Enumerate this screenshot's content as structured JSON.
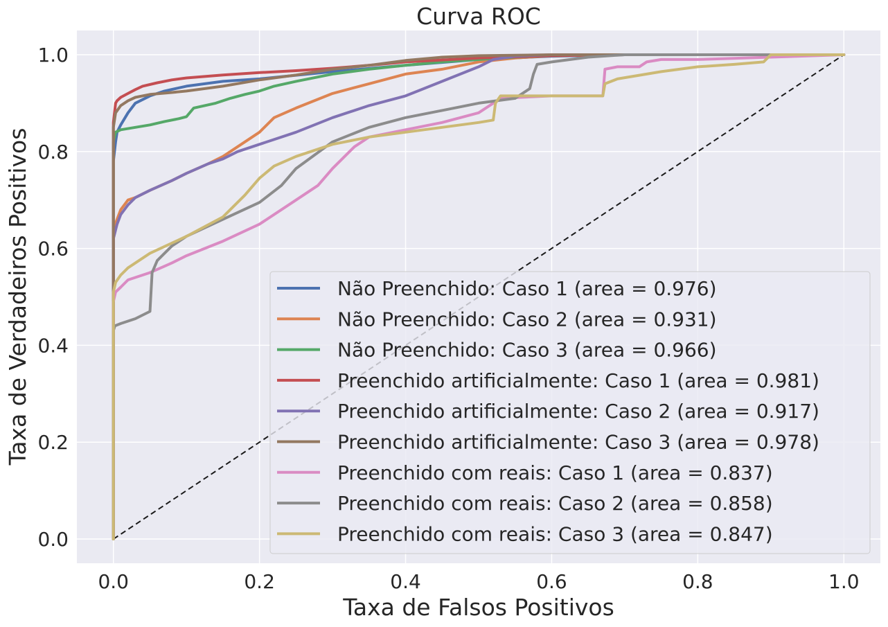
{
  "chart_data": {
    "type": "line",
    "title": "Curva ROC",
    "xlabel": "Taxa de Falsos Positivos",
    "ylabel": "Taxa de Verdadeiros Positivos",
    "xlim": [
      -0.05,
      1.05
    ],
    "ylim": [
      -0.05,
      1.05
    ],
    "xticks": [
      "0.0",
      "0.2",
      "0.4",
      "0.6",
      "0.8",
      "1.0"
    ],
    "yticks": [
      "0.0",
      "0.2",
      "0.4",
      "0.6",
      "0.8",
      "1.0"
    ],
    "grid": true,
    "legend_position": "lower right",
    "background_color": "#eaeaf2",
    "grid_color": "#ffffff",
    "diagonal": {
      "x": [
        0,
        1
      ],
      "y": [
        0,
        1
      ],
      "style": "dashed",
      "color": "#1a1a1a"
    },
    "series": [
      {
        "name": "Não Preenchido: Caso 1 (area = 0.976)",
        "color": "#4c72b0",
        "x": [
          0,
          0,
          0.003,
          0.005,
          0.01,
          0.02,
          0.03,
          0.05,
          0.07,
          0.1,
          0.15,
          0.2,
          0.3,
          0.4,
          0.5,
          0.6,
          0.7,
          1
        ],
        "y": [
          0,
          0.78,
          0.82,
          0.84,
          0.855,
          0.88,
          0.9,
          0.915,
          0.925,
          0.935,
          0.945,
          0.95,
          0.965,
          0.978,
          0.99,
          0.997,
          1,
          1
        ]
      },
      {
        "name": "Não Preenchido: Caso 2 (area = 0.931)",
        "color": "#dd8452",
        "x": [
          0,
          0,
          0.005,
          0.01,
          0.02,
          0.03,
          0.05,
          0.08,
          0.1,
          0.13,
          0.15,
          0.17,
          0.2,
          0.22,
          0.25,
          0.3,
          0.35,
          0.4,
          0.45,
          0.5,
          0.55,
          0.6,
          0.7,
          1
        ],
        "y": [
          0,
          0.64,
          0.66,
          0.68,
          0.7,
          0.705,
          0.72,
          0.74,
          0.755,
          0.775,
          0.79,
          0.81,
          0.84,
          0.87,
          0.89,
          0.92,
          0.94,
          0.96,
          0.97,
          0.985,
          0.993,
          0.998,
          1,
          1
        ]
      },
      {
        "name": "Não Preenchido: Caso 3 (area = 0.966)",
        "color": "#55a868",
        "x": [
          0,
          0,
          0.003,
          0.01,
          0.03,
          0.05,
          0.07,
          0.09,
          0.1,
          0.11,
          0.14,
          0.16,
          0.18,
          0.2,
          0.22,
          0.25,
          0.3,
          0.35,
          0.4,
          0.45,
          0.5,
          0.55,
          0.6,
          0.7,
          1
        ],
        "y": [
          0,
          0.82,
          0.84,
          0.845,
          0.85,
          0.855,
          0.862,
          0.868,
          0.872,
          0.89,
          0.9,
          0.91,
          0.918,
          0.925,
          0.935,
          0.945,
          0.96,
          0.97,
          0.978,
          0.985,
          0.99,
          0.995,
          0.998,
          1,
          1
        ]
      },
      {
        "name": "Preenchido artificialmente: Caso 1 (area = 0.981)",
        "color": "#c44e52",
        "x": [
          0,
          0,
          0.003,
          0.005,
          0.01,
          0.02,
          0.03,
          0.04,
          0.06,
          0.08,
          0.1,
          0.15,
          0.2,
          0.25,
          0.3,
          0.35,
          0.4,
          0.5,
          0.6,
          0.7,
          1
        ],
        "y": [
          0,
          0.86,
          0.9,
          0.905,
          0.912,
          0.92,
          0.928,
          0.935,
          0.942,
          0.948,
          0.952,
          0.958,
          0.963,
          0.967,
          0.972,
          0.978,
          0.985,
          0.993,
          0.998,
          1,
          1
        ]
      },
      {
        "name": "Preenchido artificialmente: Caso 2 (area = 0.917)",
        "color": "#8172b3",
        "x": [
          0,
          0,
          0.005,
          0.01,
          0.02,
          0.03,
          0.05,
          0.08,
          0.1,
          0.13,
          0.15,
          0.17,
          0.2,
          0.25,
          0.3,
          0.35,
          0.4,
          0.45,
          0.5,
          0.52,
          0.55,
          0.6,
          0.7,
          1
        ],
        "y": [
          0,
          0.62,
          0.65,
          0.67,
          0.69,
          0.705,
          0.72,
          0.74,
          0.755,
          0.775,
          0.785,
          0.8,
          0.815,
          0.84,
          0.87,
          0.895,
          0.915,
          0.945,
          0.975,
          0.99,
          0.997,
          1,
          1,
          1
        ]
      },
      {
        "name": "Preenchido artificialmente: Caso 3 (area = 0.978)",
        "color": "#937860",
        "x": [
          0,
          0,
          0.003,
          0.01,
          0.02,
          0.03,
          0.05,
          0.08,
          0.1,
          0.15,
          0.2,
          0.25,
          0.3,
          0.35,
          0.4,
          0.45,
          0.5,
          0.6,
          0.7,
          1
        ],
        "y": [
          0,
          0.85,
          0.88,
          0.895,
          0.905,
          0.912,
          0.918,
          0.922,
          0.925,
          0.935,
          0.948,
          0.958,
          0.97,
          0.978,
          0.988,
          0.995,
          0.998,
          1,
          1,
          1
        ]
      },
      {
        "name": "Preenchido com reais: Caso 1 (area = 0.837)",
        "color": "#da8bc3",
        "x": [
          0,
          0,
          0.003,
          0.01,
          0.02,
          0.05,
          0.08,
          0.1,
          0.15,
          0.2,
          0.25,
          0.28,
          0.3,
          0.33,
          0.35,
          0.4,
          0.45,
          0.5,
          0.52,
          0.53,
          0.6,
          0.67,
          0.673,
          0.69,
          0.72,
          0.73,
          0.75,
          0.8,
          0.9,
          1
        ],
        "y": [
          0,
          0.49,
          0.51,
          0.52,
          0.535,
          0.55,
          0.57,
          0.585,
          0.615,
          0.65,
          0.7,
          0.73,
          0.765,
          0.81,
          0.83,
          0.845,
          0.86,
          0.88,
          0.9,
          0.91,
          0.915,
          0.915,
          0.97,
          0.975,
          0.975,
          0.985,
          0.99,
          0.99,
          0.995,
          1
        ]
      },
      {
        "name": "Preenchido com reais: Caso 2 (area = 0.858)",
        "color": "#8c8c8c",
        "x": [
          0,
          0,
          0.002,
          0.01,
          0.03,
          0.05,
          0.053,
          0.06,
          0.08,
          0.1,
          0.15,
          0.2,
          0.23,
          0.25,
          0.3,
          0.35,
          0.4,
          0.45,
          0.5,
          0.55,
          0.57,
          0.575,
          0.58,
          0.6,
          0.65,
          0.7,
          1
        ],
        "y": [
          0,
          0.43,
          0.44,
          0.445,
          0.455,
          0.47,
          0.55,
          0.575,
          0.605,
          0.625,
          0.66,
          0.695,
          0.73,
          0.765,
          0.82,
          0.85,
          0.87,
          0.885,
          0.9,
          0.91,
          0.93,
          0.96,
          0.98,
          0.985,
          0.995,
          1,
          1
        ]
      },
      {
        "name": "Preenchido com reais: Caso 3 (area = 0.847)",
        "color": "#ccb974",
        "x": [
          0,
          0,
          0.003,
          0.01,
          0.02,
          0.03,
          0.05,
          0.1,
          0.15,
          0.18,
          0.2,
          0.22,
          0.25,
          0.3,
          0.35,
          0.4,
          0.45,
          0.5,
          0.52,
          0.523,
          0.53,
          0.6,
          0.67,
          0.673,
          0.69,
          0.75,
          0.8,
          0.85,
          0.89,
          0.9,
          1
        ],
        "y": [
          0,
          0.51,
          0.53,
          0.545,
          0.56,
          0.57,
          0.59,
          0.625,
          0.665,
          0.71,
          0.745,
          0.77,
          0.79,
          0.815,
          0.83,
          0.84,
          0.85,
          0.86,
          0.865,
          0.9,
          0.915,
          0.915,
          0.915,
          0.94,
          0.95,
          0.965,
          0.975,
          0.98,
          0.985,
          1,
          1
        ]
      }
    ]
  }
}
